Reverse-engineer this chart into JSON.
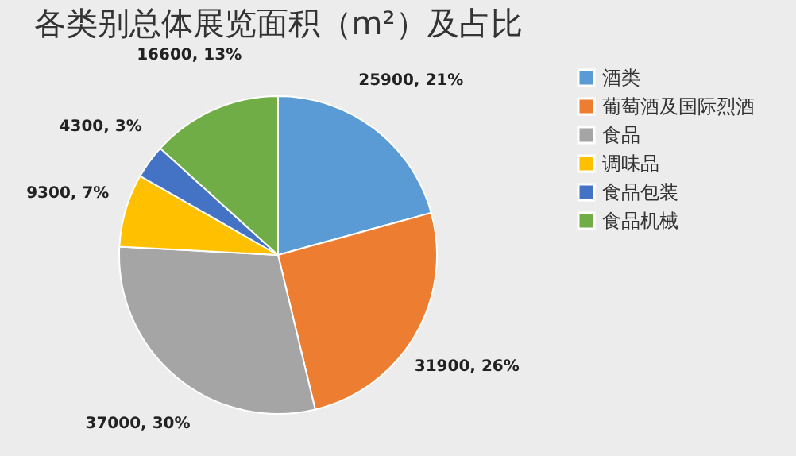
{
  "chart_data": {
    "type": "pie",
    "title": "各类别总体展览面积（m²）及占比",
    "categories": [
      "酒类",
      "葡萄酒及国际烈酒",
      "食品",
      "调味品",
      "食品包装",
      "食品机械"
    ],
    "values": [
      25900,
      31900,
      37000,
      9300,
      4300,
      16600
    ],
    "colors": [
      "#5b9bd5",
      "#ed7d31",
      "#a5a5a5",
      "#ffc000",
      "#4472c4",
      "#70ad47"
    ],
    "value_labels": [
      "25900, 21%",
      "31900, 26%",
      "37000, 30%",
      "9300, 7%",
      "4300, 3%",
      "16600, 13%"
    ],
    "legend": "right"
  }
}
